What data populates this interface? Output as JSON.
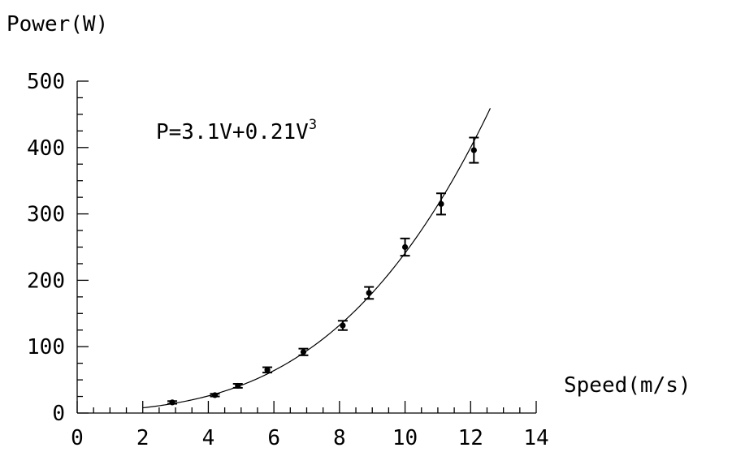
{
  "chart_data": {
    "type": "scatter",
    "ylabel": "Power(W)",
    "xlabel": "Speed(m/s)",
    "annotation": {
      "prefix": "P=3.1V+0.21V",
      "superscript": "3"
    },
    "xlim": [
      0,
      14
    ],
    "ylim": [
      0,
      500
    ],
    "x_ticks": [
      "0",
      "2",
      "4",
      "6",
      "8",
      "10",
      "12",
      "14"
    ],
    "y_ticks": [
      "0",
      "100",
      "200",
      "300",
      "400",
      "500"
    ],
    "grid": false,
    "fit": {
      "a": 3.1,
      "b": 0.21,
      "x_range": [
        2,
        12.6
      ]
    },
    "series": [
      {
        "points": [
          {
            "x": 2.9,
            "y": 16,
            "err": 2
          },
          {
            "x": 4.2,
            "y": 27,
            "err": 2
          },
          {
            "x": 4.9,
            "y": 41,
            "err": 3
          },
          {
            "x": 5.8,
            "y": 65,
            "err": 4
          },
          {
            "x": 6.9,
            "y": 92,
            "err": 5
          },
          {
            "x": 8.1,
            "y": 132,
            "err": 7
          },
          {
            "x": 8.9,
            "y": 181,
            "err": 9
          },
          {
            "x": 10.0,
            "y": 250,
            "err": 13
          },
          {
            "x": 11.1,
            "y": 315,
            "err": 16
          },
          {
            "x": 12.1,
            "y": 396,
            "err": 19
          }
        ]
      }
    ]
  }
}
